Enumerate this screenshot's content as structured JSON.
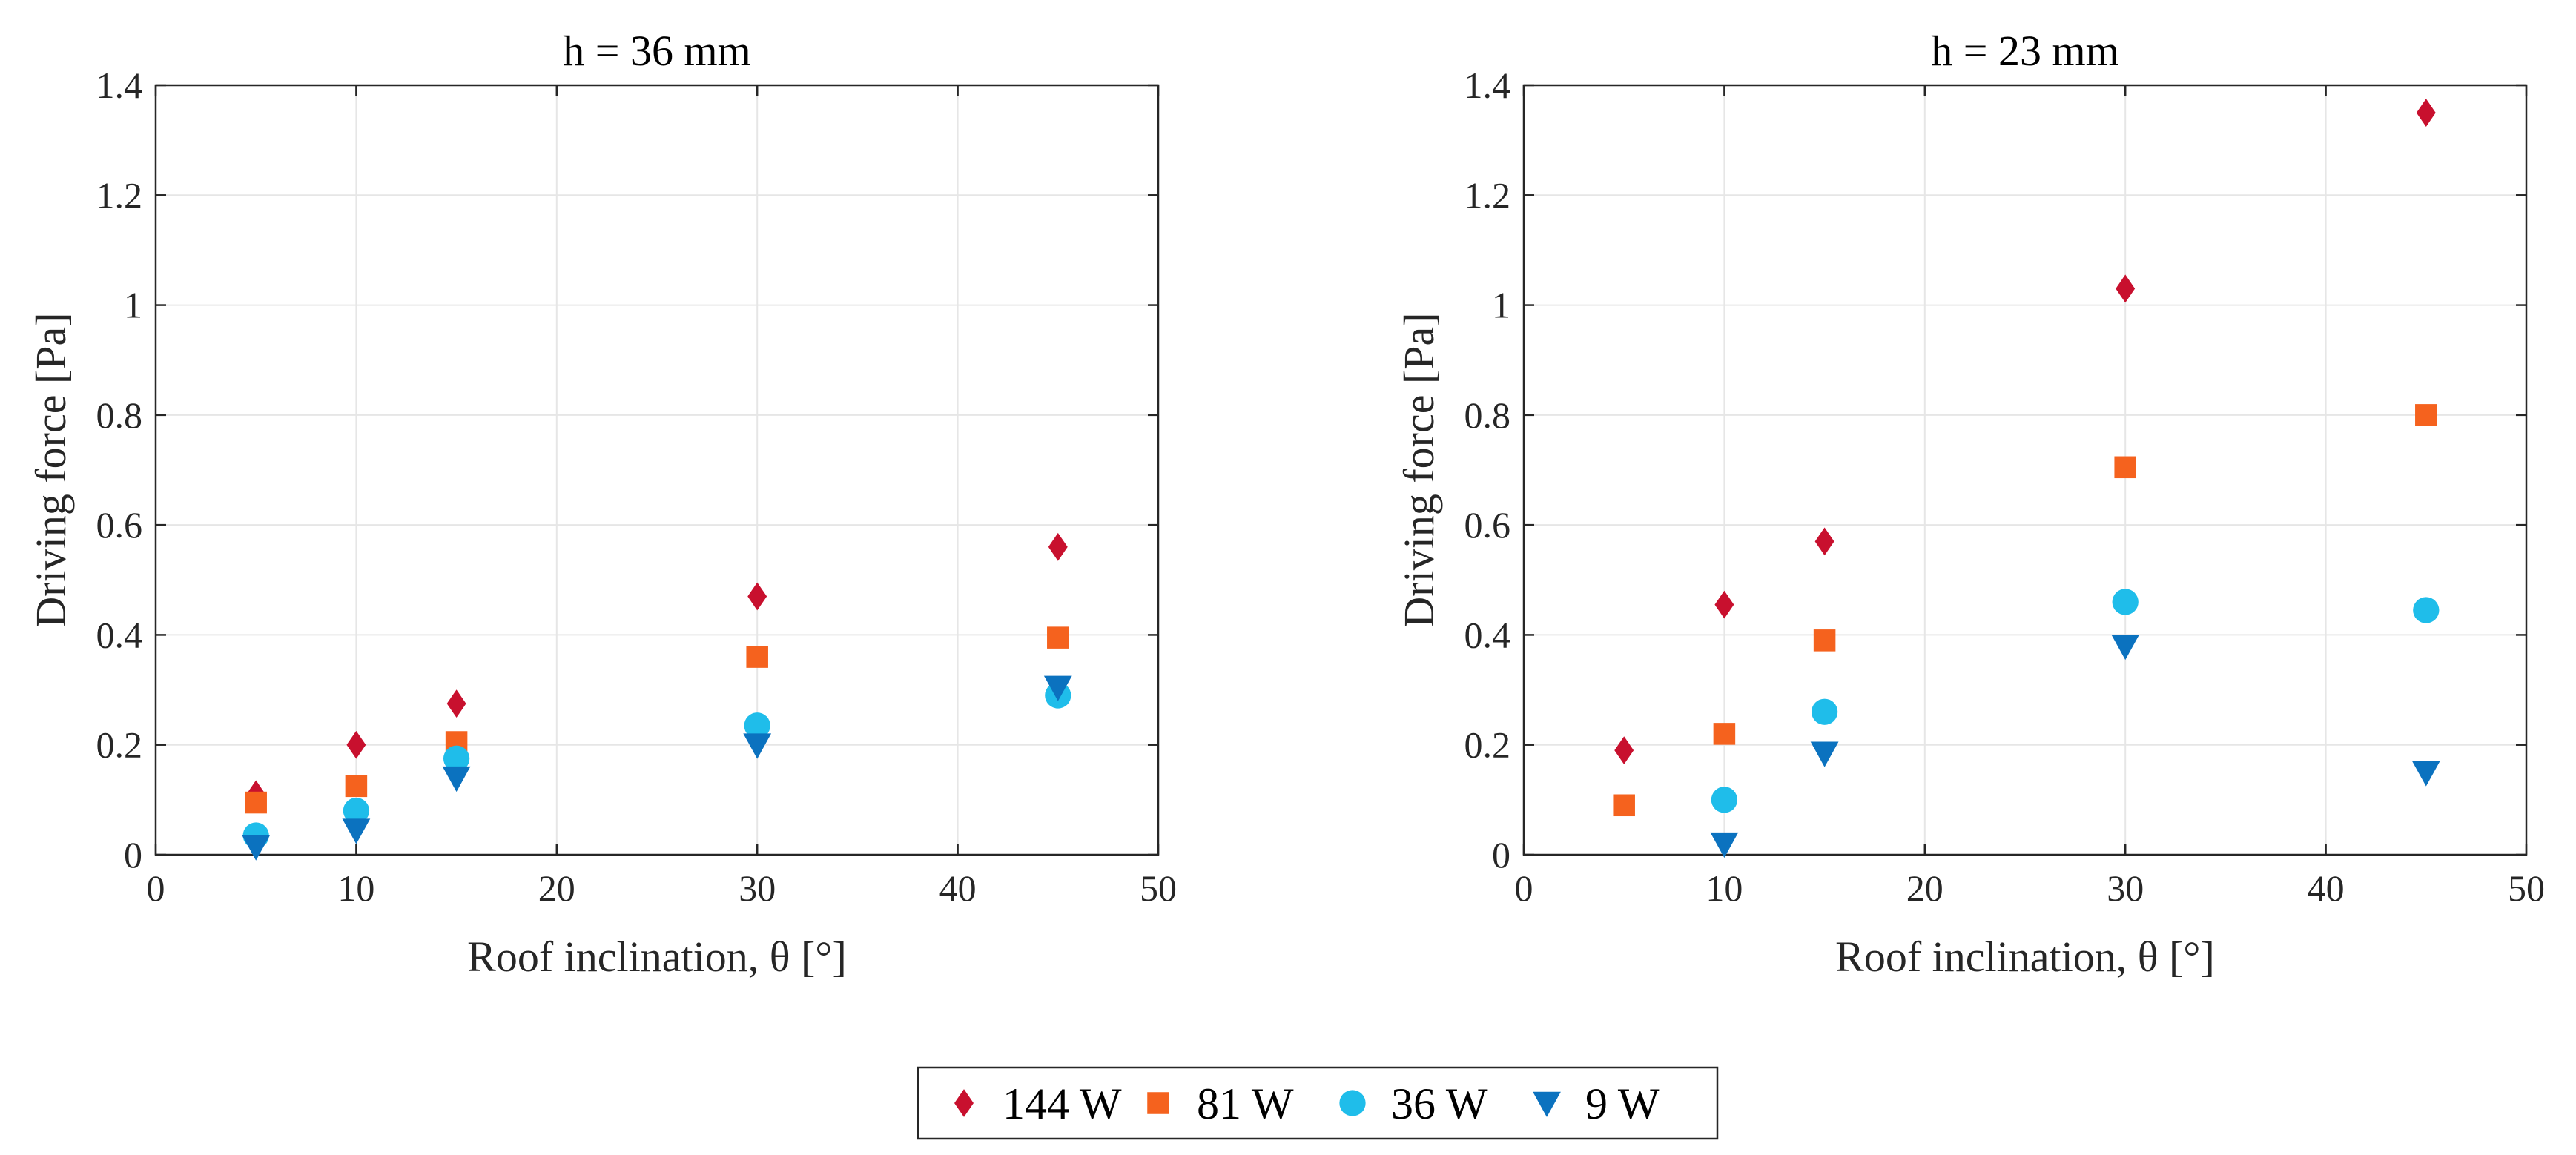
{
  "chart_data": [
    {
      "type": "scatter",
      "title": "h = 36 mm",
      "xlabel": "Roof inclination, θ [°]",
      "ylabel": "Driving force [Pa]",
      "xlim": [
        0,
        50
      ],
      "ylim": [
        0,
        1.4
      ],
      "xticks": [
        "0",
        "10",
        "20",
        "30",
        "40",
        "50"
      ],
      "yticks": [
        "0",
        "0.2",
        "0.4",
        "0.6",
        "0.8",
        "1",
        "1.2",
        "1.4"
      ],
      "grid": true,
      "x": [
        5,
        10,
        15,
        30,
        45
      ],
      "series": [
        {
          "name": "144 W",
          "values": [
            0.11,
            0.2,
            0.275,
            0.47,
            0.56
          ]
        },
        {
          "name": "81 W",
          "values": [
            0.095,
            0.125,
            0.205,
            0.36,
            0.395
          ]
        },
        {
          "name": "36 W",
          "values": [
            0.035,
            0.08,
            0.175,
            0.235,
            0.29
          ]
        },
        {
          "name": "9 W",
          "values": [
            0.015,
            0.045,
            0.14,
            0.2,
            0.305
          ]
        }
      ]
    },
    {
      "type": "scatter",
      "title": "h = 23 mm",
      "xlabel": "Roof inclination, θ [°]",
      "ylabel": "Driving force [Pa]",
      "xlim": [
        0,
        50
      ],
      "ylim": [
        0,
        1.4
      ],
      "xticks": [
        "0",
        "10",
        "20",
        "30",
        "40",
        "50"
      ],
      "yticks": [
        "0",
        "0.2",
        "0.4",
        "0.6",
        "0.8",
        "1",
        "1.2",
        "1.4"
      ],
      "grid": true,
      "x": [
        5,
        10,
        15,
        30,
        45
      ],
      "series": [
        {
          "name": "144 W",
          "values": [
            0.19,
            0.455,
            0.57,
            1.03,
            1.35
          ]
        },
        {
          "name": "81 W",
          "values": [
            0.09,
            0.22,
            0.39,
            0.705,
            0.8
          ]
        },
        {
          "name": "36 W",
          "values": [
            null,
            0.1,
            0.26,
            0.46,
            0.445
          ]
        },
        {
          "name": "9 W",
          "values": [
            null,
            0.02,
            0.185,
            0.38,
            0.15
          ]
        }
      ]
    }
  ],
  "legend": {
    "placement": "bottom-center",
    "entries": [
      {
        "label": "144 W",
        "marker": "diamond",
        "color": "#C8102E"
      },
      {
        "label": "81 W",
        "marker": "square",
        "color": "#F5621E"
      },
      {
        "label": "36 W",
        "marker": "circle",
        "color": "#1FBDEA"
      },
      {
        "label": "9 W",
        "marker": "triangle-down",
        "color": "#0B72BF"
      }
    ]
  }
}
